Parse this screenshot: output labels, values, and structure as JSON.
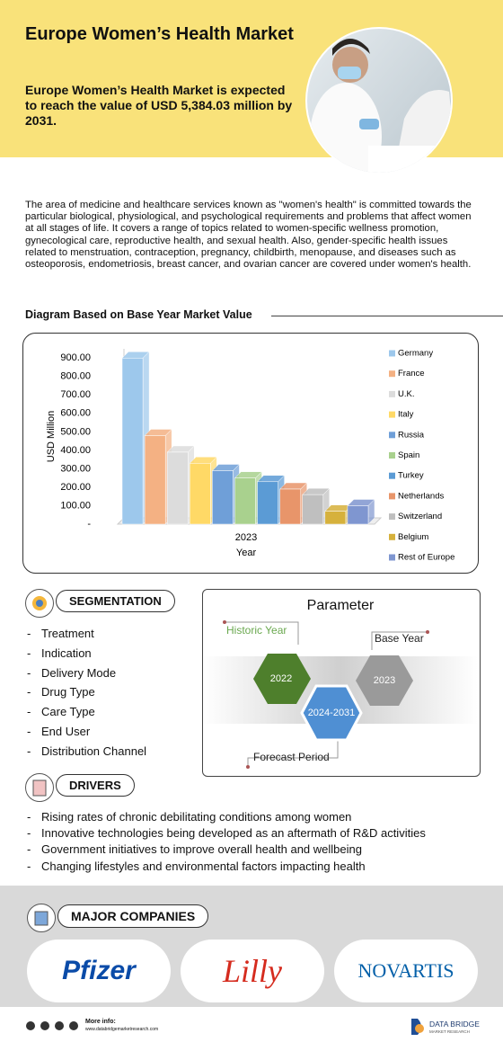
{
  "header": {
    "title": "Europe Women’s Health Market",
    "subtitle": "Europe Women’s Health Market is expected to reach the value of USD 5,384.03 million by 2031."
  },
  "intro": "The area of medicine and healthcare services known as \"women's health\" is committed towards the particular biological, physiological, and psychological requirements and problems that affect women at all stages of life. It covers a range of topics related to women-specific wellness promotion, gynecological care, reproductive health, and sexual health. Also, gender-specific health issues related to menstruation, contraception, pregnancy, childbirth, menopause, and diseases such as osteoporosis, endometriosis, breast cancer, and ovarian cancer are covered under women's health.",
  "chart_data": {
    "type": "bar3d",
    "title": "Diagram Based on Base Year Market Value",
    "y_label": "USD Million",
    "x_label": "Year",
    "categories": [
      "2023"
    ],
    "series": [
      {
        "name": "Germany",
        "color": "#9dc8ec",
        "values": [
          900
        ]
      },
      {
        "name": "France",
        "color": "#f4b183",
        "values": [
          480
        ]
      },
      {
        "name": "U.K.",
        "color": "#dcdcdc",
        "values": [
          390
        ]
      },
      {
        "name": "Italy",
        "color": "#ffd966",
        "values": [
          330
        ]
      },
      {
        "name": "Russia",
        "color": "#6f9fd8",
        "values": [
          290
        ]
      },
      {
        "name": "Spain",
        "color": "#a9d18e",
        "values": [
          250
        ]
      },
      {
        "name": "Turkey",
        "color": "#5b9bd5",
        "values": [
          230
        ]
      },
      {
        "name": "Netherlands",
        "color": "#e8956a",
        "values": [
          190
        ]
      },
      {
        "name": "Switzerland",
        "color": "#bfbfbf",
        "values": [
          160
        ]
      },
      {
        "name": "Belgium",
        "color": "#d6b13c",
        "values": [
          70
        ]
      },
      {
        "name": "Rest of Europe",
        "color": "#7f96d0",
        "values": [
          100
        ]
      }
    ],
    "ylim": [
      0,
      950
    ],
    "yticks": [
      {
        "value": 0,
        "label": "-"
      },
      {
        "value": 100,
        "label": "100.00"
      },
      {
        "value": 200,
        "label": "200.00"
      },
      {
        "value": 300,
        "label": "300.00"
      },
      {
        "value": 400,
        "label": "400.00"
      },
      {
        "value": 500,
        "label": "500.00"
      },
      {
        "value": 600,
        "label": "600.00"
      },
      {
        "value": 700,
        "label": "700.00"
      },
      {
        "value": 800,
        "label": "800.00"
      },
      {
        "value": 900,
        "label": "900.00"
      }
    ],
    "grid": false,
    "legend": "right"
  },
  "segmentation": {
    "title": "SEGMENTATION",
    "items": [
      "Treatment",
      "Indication",
      "Delivery Mode",
      "Drug Type",
      "Care Type",
      "End User",
      "Distribution Channel"
    ]
  },
  "parameter": {
    "title": "Parameter",
    "historic_label": "Historic Year",
    "historic_year": "2022",
    "base_label": "Base Year",
    "base_year": "2023",
    "forecast_label": "Forecast Period",
    "forecast_years": "2024-2031"
  },
  "drivers": {
    "title": "DRIVERS",
    "items": [
      "Rising rates of chronic debilitating conditions among women",
      "Innovative technologies being developed as an aftermath of R&D activities",
      "Government initiatives to improve overall health and wellbeing",
      "Changing lifestyles and environmental factors impacting health"
    ]
  },
  "companies": {
    "title": "MAJOR COMPANIES",
    "names": [
      "Pfizer",
      "Lilly",
      "NOVARTIS"
    ]
  },
  "footer": {
    "more_info": "More info:",
    "website": "www.databridgemarketresearch.com",
    "brand": "DATA BRIDGE",
    "brand_sub": "MARKET RESEARCH"
  }
}
